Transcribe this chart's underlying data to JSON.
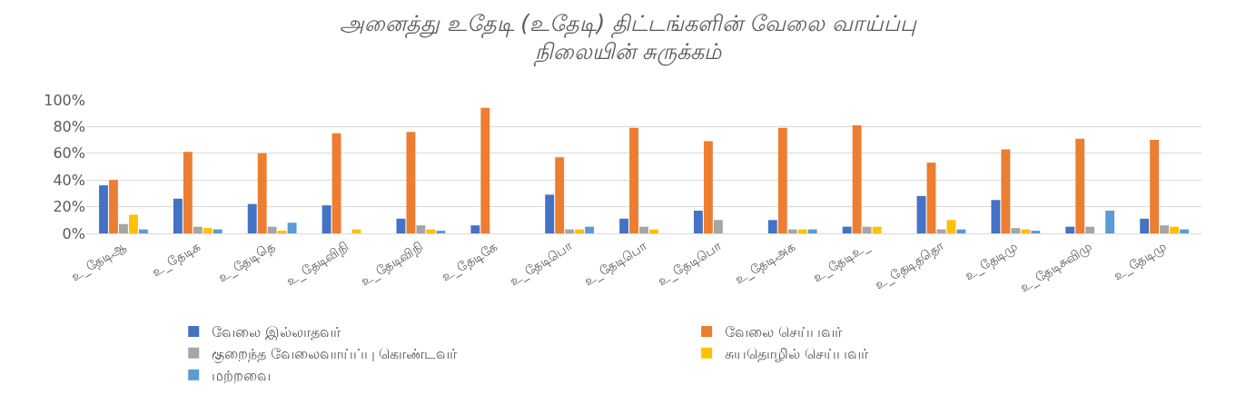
{
  "chart_data": {
    "type": "bar",
    "title": "அனைத்து உதேடி (உதேடி) திட்டங்களின் வேலை வாய்ப்பு\nநிலையின் சுருக்கம்",
    "categories": [
      "உ_தேடிஆ",
      "உ_தேடிக",
      "உ_தேடிதெ",
      "உ_தேடிவிநி",
      "உ_தேடிவிநி",
      "உ_தேடிகே",
      "உ_தேடிபொ",
      "உ_தேடிபொ",
      "உ_தேடிபொ",
      "உ_தேடிஅக",
      "உ_தேடிஉ_",
      "உ_தேடிததொ",
      "உ_தேடிமு",
      "உ_தேடிசுவிமு",
      "உ_தேடிமு"
    ],
    "series": [
      {
        "name": "வேலை இல்லாதவர்",
        "color": "#4472c4",
        "values": [
          36,
          26,
          22,
          21,
          11,
          6,
          29,
          11,
          17,
          10,
          5,
          28,
          25,
          5,
          11
        ]
      },
      {
        "name": "வேலை செய்பவர்",
        "color": "#ed7d31",
        "values": [
          40,
          61,
          60,
          75,
          76,
          94,
          57,
          79,
          69,
          79,
          81,
          53,
          63,
          71,
          70
        ]
      },
      {
        "name": "குறைந்த வேலைவாய்ப்பு கொண்டவர்",
        "color": "#a5a5a5",
        "values": [
          7,
          5,
          5,
          0,
          6,
          0,
          3,
          5,
          10,
          3,
          5,
          3,
          4,
          5,
          6
        ]
      },
      {
        "name": "சுயதொழில் செய்பவர்",
        "color": "#ffc000",
        "values": [
          14,
          4,
          2,
          3,
          3,
          0,
          3,
          3,
          0,
          3,
          5,
          10,
          3,
          0,
          5
        ]
      },
      {
        "name": "மற்றவை",
        "color": "#5b9bd5",
        "values": [
          3,
          3,
          8,
          0,
          2,
          0,
          5,
          0,
          0,
          3,
          0,
          3,
          2,
          17,
          3
        ]
      }
    ],
    "ylim": [
      0,
      100
    ],
    "yticks": [
      {
        "value": 0,
        "label": "0%"
      },
      {
        "value": 20,
        "label": "20%"
      },
      {
        "value": 40,
        "label": "40%"
      },
      {
        "value": 60,
        "label": "60%"
      },
      {
        "value": 80,
        "label": "80%"
      },
      {
        "value": 100,
        "label": "100%"
      }
    ],
    "grid": "y",
    "legend": "bottom"
  }
}
